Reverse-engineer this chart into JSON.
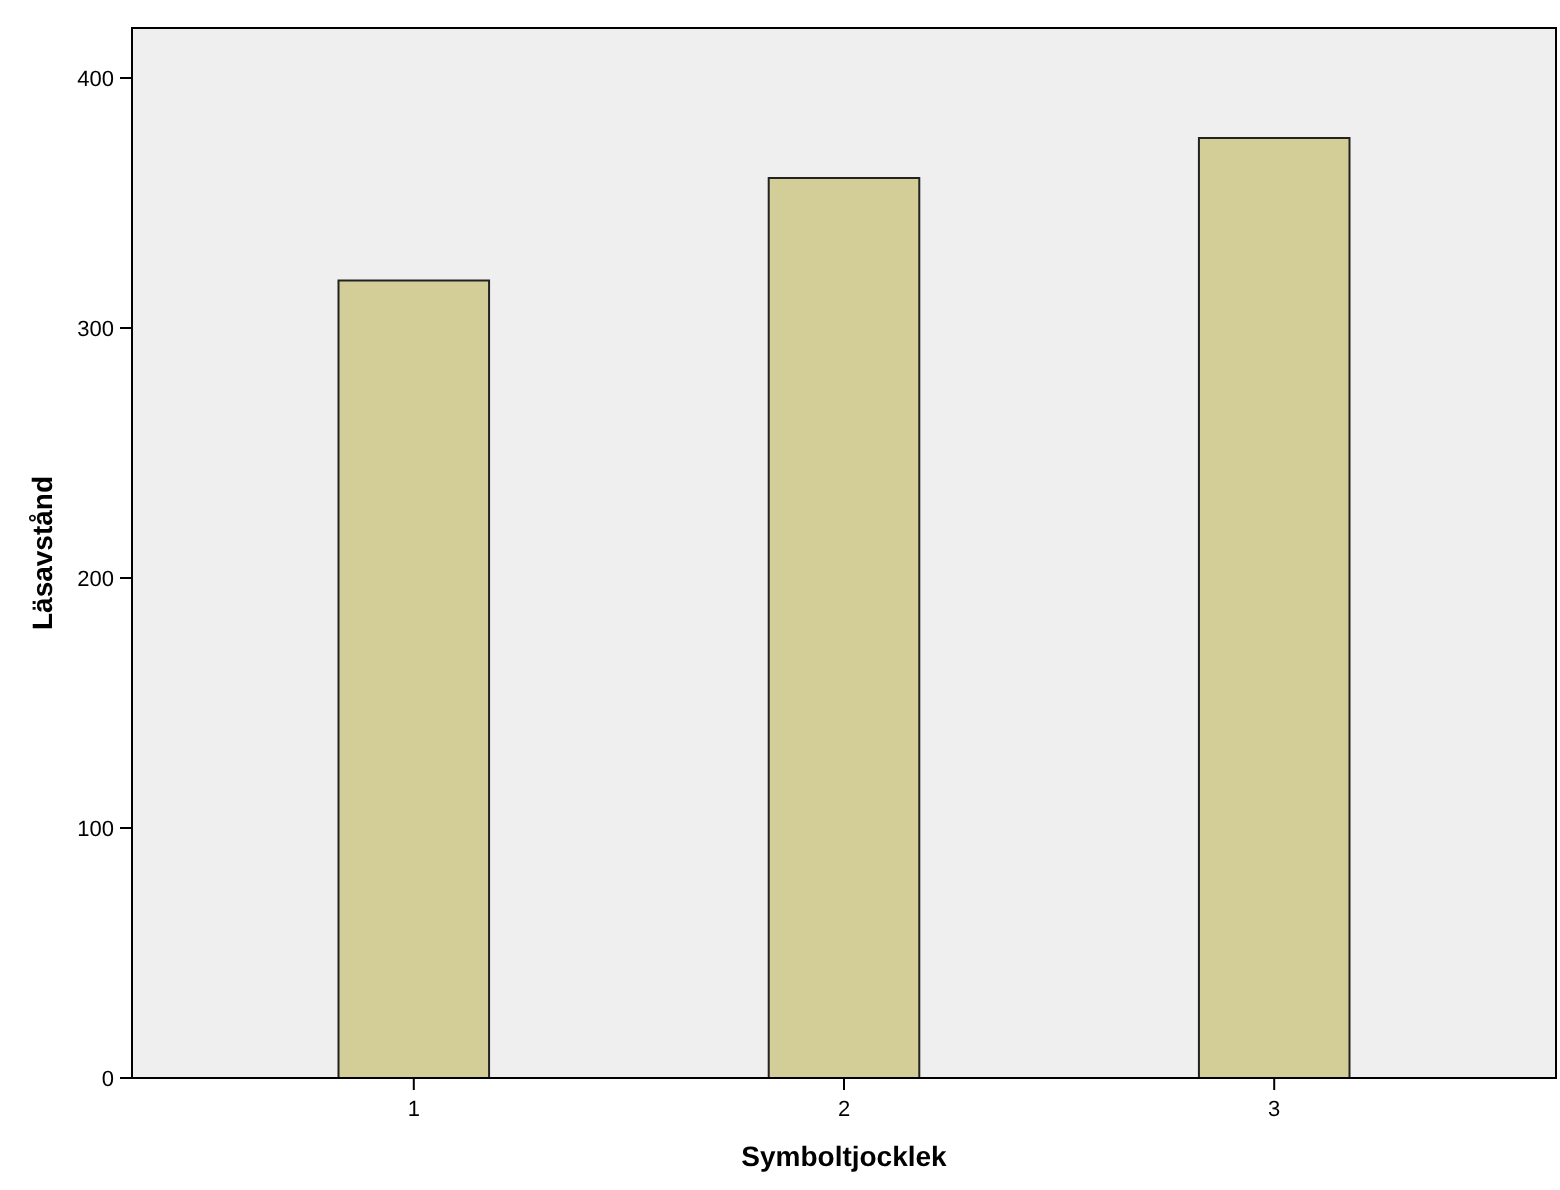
{
  "chart_data": {
    "type": "bar",
    "xlabel": "Symboltjocklek",
    "ylabel": "Läsavstånd",
    "categories": [
      "1",
      "2",
      "3"
    ],
    "values": [
      319,
      360,
      376
    ],
    "color": "#d3ce97",
    "ylim": [
      0,
      420
    ],
    "yticks": [
      0,
      100,
      200,
      300,
      400
    ],
    "grid": false
  }
}
